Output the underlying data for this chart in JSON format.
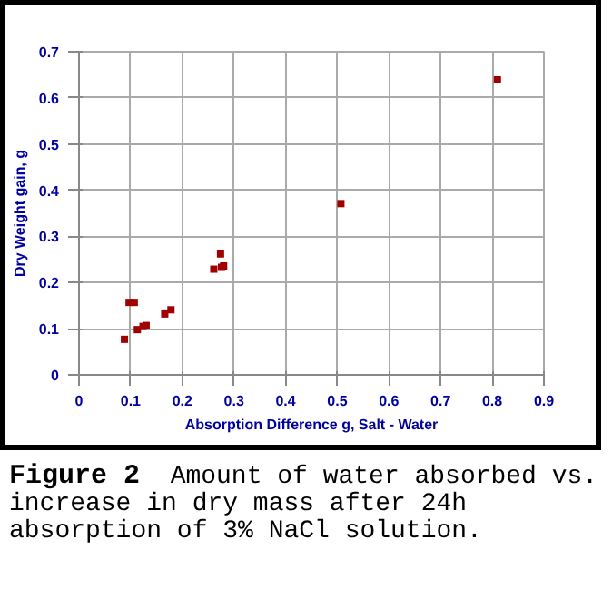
{
  "chart_data": {
    "type": "scatter",
    "xlabel": "Absorption Difference g, Salt - Water",
    "ylabel": "Dry Weight gain, g",
    "x": [
      0.088,
      0.097,
      0.107,
      0.113,
      0.124,
      0.13,
      0.166,
      0.178,
      0.261,
      0.274,
      0.276,
      0.28,
      0.507,
      0.81
    ],
    "series": [
      {
        "color": "#a00000",
        "values": [
          0.077,
          0.157,
          0.157,
          0.098,
          0.105,
          0.107,
          0.132,
          0.141,
          0.229,
          0.262,
          0.233,
          0.236,
          0.371,
          0.639
        ]
      }
    ],
    "xlim": [
      0,
      0.9
    ],
    "xticks": [
      0,
      0.1,
      0.2,
      0.3,
      0.4,
      0.5,
      0.6,
      0.7,
      0.8,
      0.9
    ],
    "ylim": [
      0,
      0.7
    ],
    "yticks": [
      0,
      0.1,
      0.2,
      0.3,
      0.4,
      0.5,
      0.6,
      0.7
    ],
    "grid": true,
    "marker": "square",
    "annotations": [
      "Figure 2  Amount of water absorbed vs. increase in dry mass after 24h absorption of 3% NaCl solution."
    ]
  }
}
